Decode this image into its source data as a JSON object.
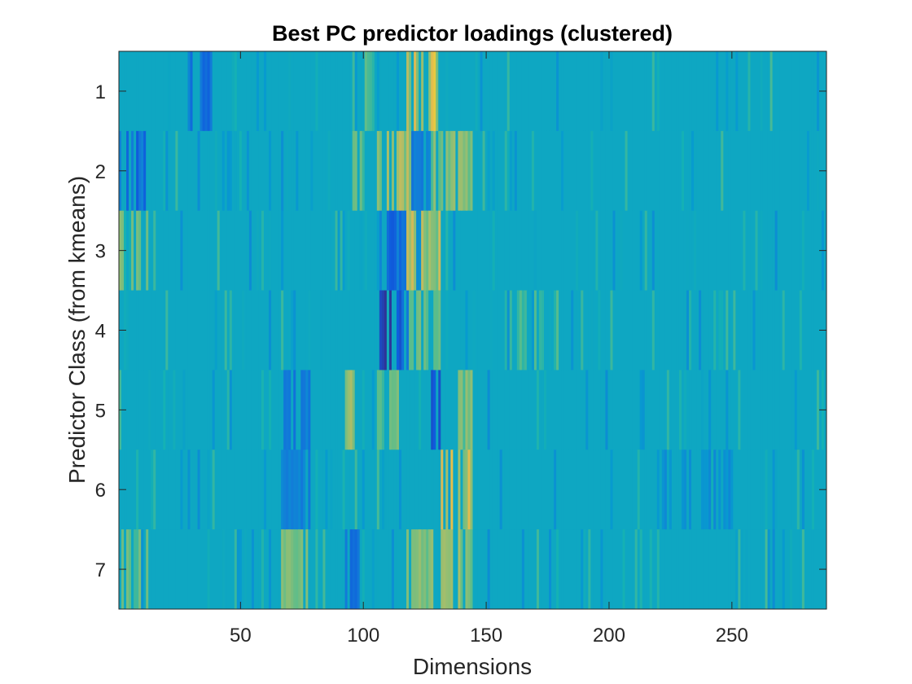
{
  "chart_data": {
    "type": "heatmap",
    "title": "Best PC predictor loadings (clustered)",
    "xlabel": "Dimensions",
    "ylabel": "Predictor Class (from kmeans)",
    "xlim": [
      0.5,
      288.5
    ],
    "ylim": [
      0.5,
      7.5
    ],
    "num_columns": 288,
    "rows": [
      1,
      2,
      3,
      4,
      5,
      6,
      7
    ],
    "x_ticks": [
      50,
      100,
      150,
      200,
      250
    ],
    "y_ticks": [
      1,
      2,
      3,
      4,
      5,
      6,
      7
    ],
    "colormap": "parula",
    "background_value": 0,
    "value_range": [
      -1,
      1
    ],
    "features": [
      {
        "row": 1,
        "cols": [
          29,
          38
        ],
        "v": -0.55
      },
      {
        "row": 1,
        "cols": [
          100,
          105
        ],
        "v": 0.3
      },
      {
        "row": 1,
        "cols": [
          118,
          131
        ],
        "v": 0.7
      },
      {
        "row": 2,
        "cols": [
          1,
          12
        ],
        "v": -0.6
      },
      {
        "row": 2,
        "cols": [
          96,
          100
        ],
        "v": 0.35
      },
      {
        "row": 2,
        "cols": [
          106,
          120
        ],
        "v": 0.55
      },
      {
        "row": 2,
        "cols": [
          120,
          128
        ],
        "v": -0.4
      },
      {
        "row": 2,
        "cols": [
          128,
          144
        ],
        "v": 0.45
      },
      {
        "row": 3,
        "cols": [
          1,
          12
        ],
        "v": 0.4
      },
      {
        "row": 3,
        "cols": [
          107,
          118
        ],
        "v": -0.6
      },
      {
        "row": 3,
        "cols": [
          118,
          131
        ],
        "v": 0.6
      },
      {
        "row": 4,
        "cols": [
          107,
          118
        ],
        "v": -0.85
      },
      {
        "row": 4,
        "cols": [
          118,
          131
        ],
        "v": 0.4
      },
      {
        "row": 4,
        "cols": [
          158,
          180
        ],
        "v": 0.25
      },
      {
        "row": 5,
        "cols": [
          67,
          78
        ],
        "v": -0.5
      },
      {
        "row": 5,
        "cols": [
          93,
          98
        ],
        "v": 0.6
      },
      {
        "row": 5,
        "cols": [
          106,
          114
        ],
        "v": 0.4
      },
      {
        "row": 5,
        "cols": [
          128,
          131
        ],
        "v": -0.7
      },
      {
        "row": 5,
        "cols": [
          139,
          144
        ],
        "v": 0.45
      },
      {
        "row": 6,
        "cols": [
          132,
          144
        ],
        "v": 0.75
      },
      {
        "row": 6,
        "cols": [
          67,
          78
        ],
        "v": -0.4
      },
      {
        "row": 6,
        "cols": [
          220,
          250
        ],
        "v": -0.25
      },
      {
        "row": 7,
        "cols": [
          1,
          12
        ],
        "v": 0.35
      },
      {
        "row": 7,
        "cols": [
          67,
          78
        ],
        "v": 0.4
      },
      {
        "row": 7,
        "cols": [
          93,
          98
        ],
        "v": -0.55
      },
      {
        "row": 7,
        "cols": [
          118,
          128
        ],
        "v": 0.45
      },
      {
        "row": 7,
        "cols": [
          132,
          144
        ],
        "v": 0.6
      }
    ]
  }
}
